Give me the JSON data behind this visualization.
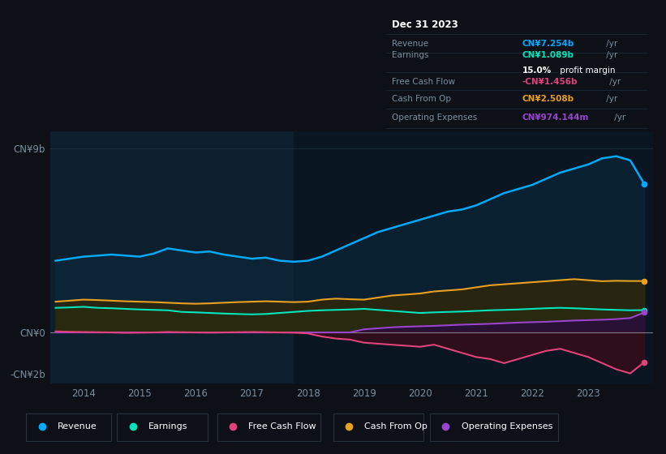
{
  "bg_color": "#0d1117",
  "plot_bg_left_color": "#0d1f2d",
  "plot_bg_right_color": "#091520",
  "text_color": "#7a8fa0",
  "zero_line_color": "#9aacb8",
  "highlight_x_start": 2017.75,
  "years_x": [
    2013.5,
    2013.75,
    2014.0,
    2014.25,
    2014.5,
    2014.75,
    2015.0,
    2015.25,
    2015.5,
    2015.75,
    2016.0,
    2016.25,
    2016.5,
    2016.75,
    2017.0,
    2017.25,
    2017.5,
    2017.75,
    2018.0,
    2018.25,
    2018.5,
    2018.75,
    2019.0,
    2019.25,
    2019.5,
    2019.75,
    2020.0,
    2020.25,
    2020.5,
    2020.75,
    2021.0,
    2021.25,
    2021.5,
    2021.75,
    2022.0,
    2022.25,
    2022.5,
    2022.75,
    2023.0,
    2023.25,
    2023.5,
    2023.75,
    2024.0
  ],
  "revenue": [
    3.5,
    3.6,
    3.7,
    3.75,
    3.8,
    3.75,
    3.7,
    3.85,
    4.1,
    4.0,
    3.9,
    3.95,
    3.8,
    3.7,
    3.6,
    3.65,
    3.5,
    3.45,
    3.5,
    3.7,
    4.0,
    4.3,
    4.6,
    4.9,
    5.1,
    5.3,
    5.5,
    5.7,
    5.9,
    6.0,
    6.2,
    6.5,
    6.8,
    7.0,
    7.2,
    7.5,
    7.8,
    8.0,
    8.2,
    8.5,
    8.6,
    8.4,
    7.254
  ],
  "earnings": [
    1.2,
    1.22,
    1.25,
    1.2,
    1.18,
    1.15,
    1.12,
    1.1,
    1.08,
    1.0,
    0.98,
    0.95,
    0.92,
    0.9,
    0.88,
    0.9,
    0.95,
    1.0,
    1.05,
    1.08,
    1.1,
    1.12,
    1.15,
    1.1,
    1.05,
    1.0,
    0.95,
    0.98,
    1.0,
    1.02,
    1.05,
    1.08,
    1.1,
    1.12,
    1.15,
    1.18,
    1.2,
    1.18,
    1.15,
    1.12,
    1.1,
    1.08,
    1.089
  ],
  "free_cash_flow": [
    0.05,
    0.03,
    0.02,
    0.01,
    0.0,
    -0.02,
    -0.01,
    0.0,
    0.02,
    0.01,
    0.0,
    -0.01,
    0.0,
    0.01,
    0.02,
    0.01,
    0.0,
    -0.01,
    -0.05,
    -0.2,
    -0.3,
    -0.35,
    -0.5,
    -0.55,
    -0.6,
    -0.65,
    -0.7,
    -0.6,
    -0.8,
    -1.0,
    -1.2,
    -1.3,
    -1.5,
    -1.3,
    -1.1,
    -0.9,
    -0.8,
    -1.0,
    -1.2,
    -1.5,
    -1.8,
    -2.0,
    -1.456
  ],
  "cash_from_op": [
    1.5,
    1.55,
    1.6,
    1.58,
    1.55,
    1.52,
    1.5,
    1.48,
    1.45,
    1.42,
    1.4,
    1.42,
    1.45,
    1.48,
    1.5,
    1.52,
    1.5,
    1.48,
    1.5,
    1.6,
    1.65,
    1.62,
    1.6,
    1.7,
    1.8,
    1.85,
    1.9,
    2.0,
    2.05,
    2.1,
    2.2,
    2.3,
    2.35,
    2.4,
    2.45,
    2.5,
    2.55,
    2.6,
    2.55,
    2.5,
    2.52,
    2.51,
    2.508
  ],
  "operating_expenses": [
    0.0,
    0.0,
    0.0,
    0.0,
    0.0,
    0.0,
    0.0,
    0.0,
    0.0,
    0.0,
    0.0,
    0.0,
    0.0,
    0.0,
    0.0,
    0.0,
    0.0,
    0.0,
    0.0,
    0.0,
    0.0,
    0.0,
    0.15,
    0.2,
    0.25,
    0.28,
    0.3,
    0.32,
    0.35,
    0.38,
    0.4,
    0.42,
    0.45,
    0.48,
    0.5,
    0.52,
    0.55,
    0.58,
    0.6,
    0.62,
    0.65,
    0.7,
    0.974
  ],
  "revenue_color": "#00aaff",
  "earnings_color": "#00e5bb",
  "free_cash_flow_color": "#e0437a",
  "cash_from_op_color": "#e8a020",
  "operating_expenses_color": "#9944cc",
  "revenue_fill": "#0a2a40",
  "earnings_fill": "#0a3028",
  "free_cash_flow_fill": "#4a0a18",
  "cash_from_op_fill": "#3a2800",
  "operating_expenses_fill": "#2a0a40",
  "ylim_min": -2.5,
  "ylim_max": 9.8,
  "xlim_min": 2013.4,
  "xlim_max": 2024.15,
  "xtick_years": [
    2014,
    2015,
    2016,
    2017,
    2018,
    2019,
    2020,
    2021,
    2022,
    2023
  ],
  "ytick_vals": [
    -2,
    0,
    9
  ],
  "ytick_labels": [
    "-CN¥2b",
    "CN¥0",
    "CN¥9b"
  ],
  "info_box": {
    "date": "Dec 31 2023",
    "revenue_label": "Revenue",
    "revenue_value": "CN¥7.254b",
    "revenue_color": "#00aaff",
    "earnings_label": "Earnings",
    "earnings_value": "CN¥1.089b",
    "earnings_color": "#00e5bb",
    "margin_bold": "15.0%",
    "margin_rest": " profit margin",
    "fcf_label": "Free Cash Flow",
    "fcf_value": "-CN¥1.456b",
    "fcf_color": "#e0437a",
    "cashop_label": "Cash From Op",
    "cashop_value": "CN¥2.508b",
    "cashop_color": "#e8a020",
    "opex_label": "Operating Expenses",
    "opex_value": "CN¥974.144m",
    "opex_color": "#9944cc"
  },
  "legend_items": [
    "Revenue",
    "Earnings",
    "Free Cash Flow",
    "Cash From Op",
    "Operating Expenses"
  ],
  "legend_colors": [
    "#00aaff",
    "#00e5bb",
    "#e0437a",
    "#e8a020",
    "#9944cc"
  ]
}
